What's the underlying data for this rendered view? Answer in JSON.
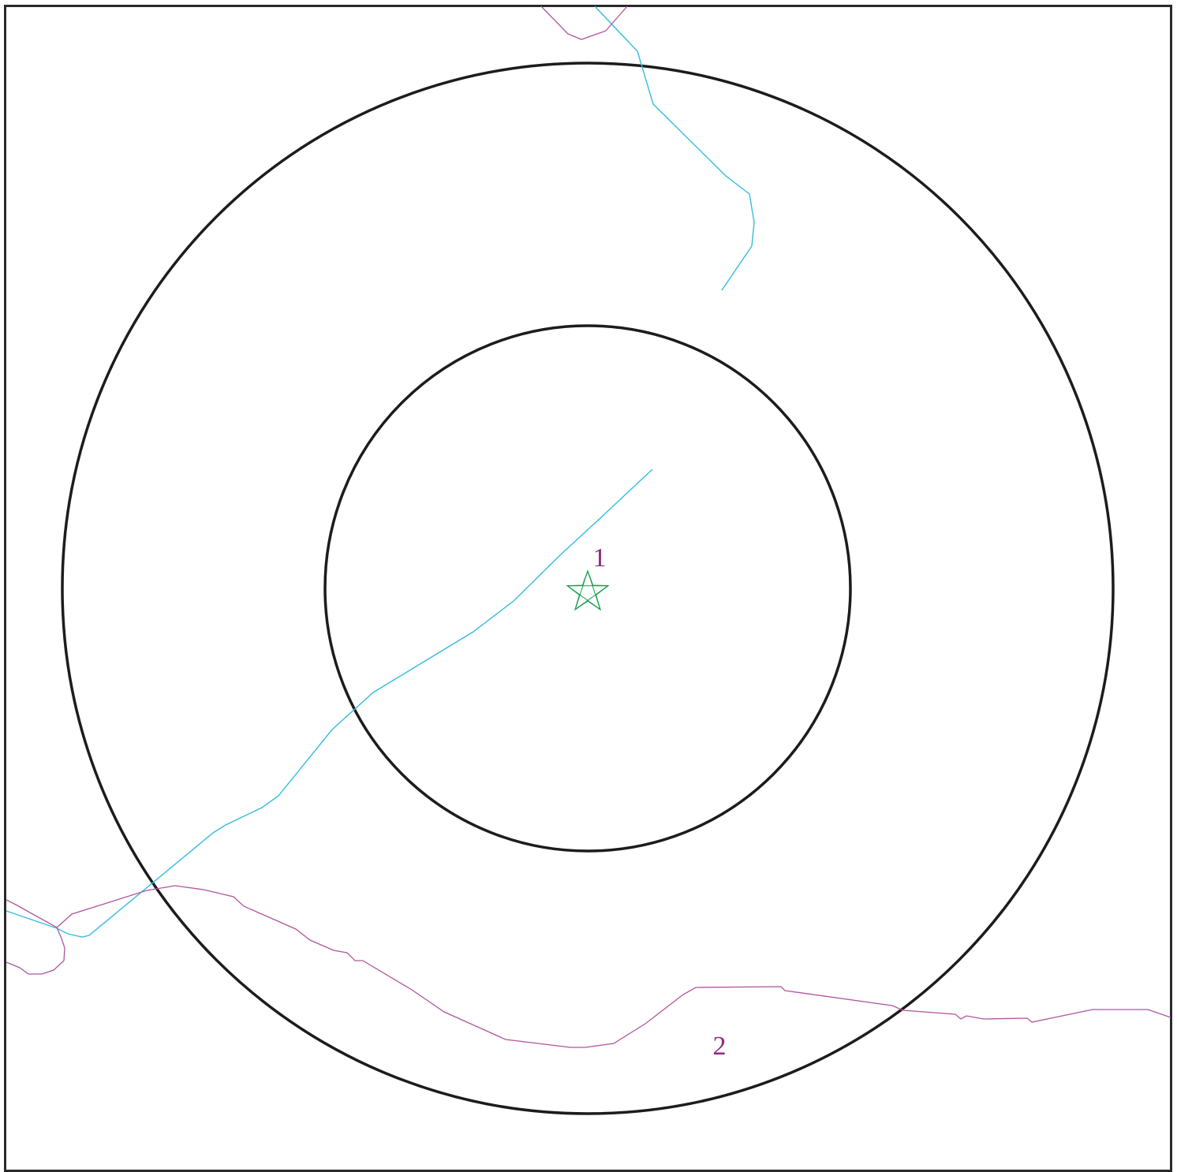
{
  "map": {
    "colors": {
      "frame": "#2a2a2a",
      "ring": "#1c1c1c",
      "river": "#33bde0",
      "boundary": "#b0559e",
      "marker": "#1aa050",
      "label": "#8e2a7c"
    },
    "marker": {
      "icon": "star-icon",
      "label": "1"
    },
    "region_label": "2"
  }
}
